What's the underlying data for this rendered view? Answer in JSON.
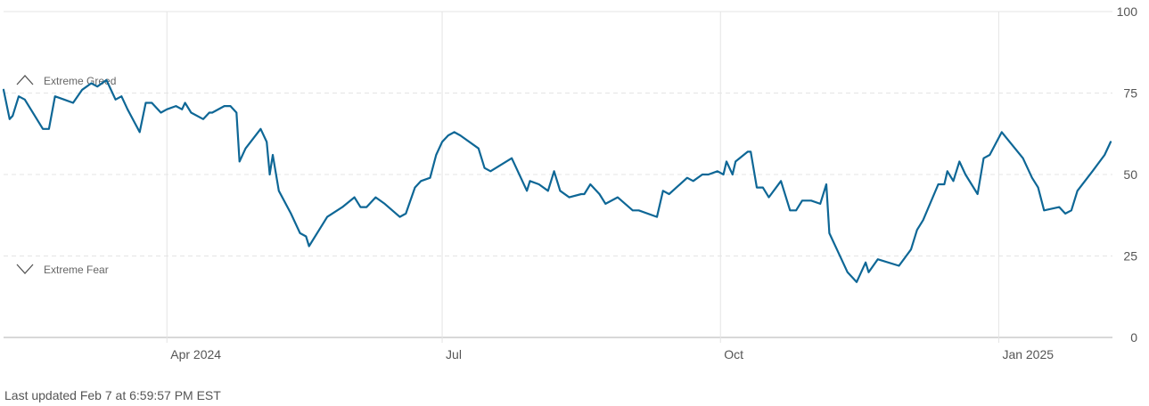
{
  "footer": {
    "updated_text": "Last updated Feb 7 at 6:59:57 PM EST"
  },
  "colors": {
    "line": "#0e6796",
    "grid": "#e4e4e4",
    "axis": "#cccccc",
    "text": "#555555"
  },
  "zones": [
    {
      "label": "Extreme Greed",
      "icon": "chevron-up-icon",
      "level": 75
    },
    {
      "label": "Extreme Fear",
      "icon": "chevron-down-icon",
      "level": 25
    }
  ],
  "chart_data": {
    "type": "line",
    "title": "",
    "xlabel": "",
    "ylabel": "",
    "ylim": [
      0,
      100
    ],
    "y_ticks": [
      0,
      25,
      50,
      75,
      100
    ],
    "y_axis_side": "right",
    "x_ticks": [
      {
        "label": "Apr 2024",
        "date": "2024-04-01"
      },
      {
        "label": "Jul",
        "date": "2024-07-01"
      },
      {
        "label": "Oct",
        "date": "2024-10-01"
      },
      {
        "label": "Jan 2025",
        "date": "2025-01-01"
      }
    ],
    "xlim": [
      "2024-02-07",
      "2025-02-07"
    ],
    "grid": "dashed horizontal at 25/50/75, vertical at month ticks",
    "series": [
      {
        "values": [
          [
            "2024-02-07",
            76
          ],
          [
            "2024-02-09",
            67
          ],
          [
            "2024-02-10",
            68
          ],
          [
            "2024-02-12",
            74
          ],
          [
            "2024-02-14",
            73
          ],
          [
            "2024-02-20",
            64
          ],
          [
            "2024-02-22",
            64
          ],
          [
            "2024-02-24",
            74
          ],
          [
            "2024-02-27",
            73
          ],
          [
            "2024-03-01",
            72
          ],
          [
            "2024-03-04",
            76
          ],
          [
            "2024-03-07",
            78
          ],
          [
            "2024-03-09",
            77
          ],
          [
            "2024-03-12",
            79
          ],
          [
            "2024-03-15",
            73
          ],
          [
            "2024-03-17",
            74
          ],
          [
            "2024-03-19",
            70
          ],
          [
            "2024-03-23",
            63
          ],
          [
            "2024-03-25",
            72
          ],
          [
            "2024-03-27",
            72
          ],
          [
            "2024-03-30",
            69
          ],
          [
            "2024-04-01",
            70
          ],
          [
            "2024-04-04",
            71
          ],
          [
            "2024-04-06",
            70
          ],
          [
            "2024-04-07",
            72
          ],
          [
            "2024-04-09",
            69
          ],
          [
            "2024-04-13",
            67
          ],
          [
            "2024-04-15",
            69
          ],
          [
            "2024-04-16",
            69
          ],
          [
            "2024-04-20",
            71
          ],
          [
            "2024-04-22",
            71
          ],
          [
            "2024-04-24",
            69
          ],
          [
            "2024-04-25",
            54
          ],
          [
            "2024-04-27",
            58
          ],
          [
            "2024-05-02",
            64
          ],
          [
            "2024-05-04",
            60
          ],
          [
            "2024-05-05",
            50
          ],
          [
            "2024-05-06",
            56
          ],
          [
            "2024-05-08",
            45
          ],
          [
            "2024-05-12",
            38
          ],
          [
            "2024-05-15",
            32
          ],
          [
            "2024-05-17",
            31
          ],
          [
            "2024-05-18",
            28
          ],
          [
            "2024-05-22",
            34
          ],
          [
            "2024-05-24",
            37
          ],
          [
            "2024-05-29",
            40
          ],
          [
            "2024-06-02",
            43
          ],
          [
            "2024-06-04",
            40
          ],
          [
            "2024-06-06",
            40
          ],
          [
            "2024-06-09",
            43
          ],
          [
            "2024-06-12",
            41
          ],
          [
            "2024-06-17",
            37
          ],
          [
            "2024-06-19",
            38
          ],
          [
            "2024-06-22",
            46
          ],
          [
            "2024-06-24",
            48
          ],
          [
            "2024-06-27",
            49
          ],
          [
            "2024-06-29",
            56
          ],
          [
            "2024-07-01",
            60
          ],
          [
            "2024-07-03",
            62
          ],
          [
            "2024-07-05",
            63
          ],
          [
            "2024-07-07",
            62
          ],
          [
            "2024-07-13",
            58
          ],
          [
            "2024-07-15",
            52
          ],
          [
            "2024-07-17",
            51
          ],
          [
            "2024-07-24",
            55
          ],
          [
            "2024-07-26",
            51
          ],
          [
            "2024-07-29",
            45
          ],
          [
            "2024-07-30",
            48
          ],
          [
            "2024-08-02",
            47
          ],
          [
            "2024-08-05",
            45
          ],
          [
            "2024-08-07",
            51
          ],
          [
            "2024-08-09",
            45
          ],
          [
            "2024-08-12",
            43
          ],
          [
            "2024-08-16",
            44
          ],
          [
            "2024-08-17",
            44
          ],
          [
            "2024-08-19",
            47
          ],
          [
            "2024-08-22",
            44
          ],
          [
            "2024-08-24",
            41
          ],
          [
            "2024-08-28",
            43
          ],
          [
            "2024-09-02",
            39
          ],
          [
            "2024-09-04",
            39
          ],
          [
            "2024-09-10",
            37
          ],
          [
            "2024-09-12",
            45
          ],
          [
            "2024-09-14",
            44
          ],
          [
            "2024-09-20",
            49
          ],
          [
            "2024-09-22",
            48
          ],
          [
            "2024-09-25",
            50
          ],
          [
            "2024-09-27",
            50
          ],
          [
            "2024-09-30",
            51
          ],
          [
            "2024-10-02",
            50
          ],
          [
            "2024-10-03",
            54
          ],
          [
            "2024-10-05",
            50
          ],
          [
            "2024-10-06",
            54
          ],
          [
            "2024-10-10",
            57
          ],
          [
            "2024-10-11",
            57
          ],
          [
            "2024-10-13",
            46
          ],
          [
            "2024-10-15",
            46
          ],
          [
            "2024-10-17",
            43
          ],
          [
            "2024-10-21",
            48
          ],
          [
            "2024-10-22",
            45
          ],
          [
            "2024-10-24",
            39
          ],
          [
            "2024-10-26",
            39
          ],
          [
            "2024-10-28",
            42
          ],
          [
            "2024-10-31",
            42
          ],
          [
            "2024-11-03",
            41
          ],
          [
            "2024-11-05",
            47
          ],
          [
            "2024-11-06",
            32
          ],
          [
            "2024-11-09",
            26
          ],
          [
            "2024-11-12",
            20
          ],
          [
            "2024-11-15",
            17
          ],
          [
            "2024-11-18",
            23
          ],
          [
            "2024-11-19",
            20
          ],
          [
            "2024-11-22",
            24
          ],
          [
            "2024-11-29",
            22
          ],
          [
            "2024-12-03",
            27
          ],
          [
            "2024-12-05",
            33
          ],
          [
            "2024-12-07",
            36
          ],
          [
            "2024-12-12",
            47
          ],
          [
            "2024-12-14",
            47
          ],
          [
            "2024-12-15",
            51
          ],
          [
            "2024-12-17",
            48
          ],
          [
            "2024-12-19",
            54
          ],
          [
            "2024-12-21",
            50
          ],
          [
            "2024-12-25",
            44
          ],
          [
            "2024-12-27",
            55
          ],
          [
            "2024-12-29",
            56
          ],
          [
            "2025-01-02",
            63
          ],
          [
            "2025-01-09",
            55
          ],
          [
            "2025-01-12",
            49
          ],
          [
            "2025-01-14",
            46
          ],
          [
            "2025-01-16",
            39
          ],
          [
            "2025-01-21",
            40
          ],
          [
            "2025-01-23",
            38
          ],
          [
            "2025-01-25",
            39
          ],
          [
            "2025-01-27",
            45
          ],
          [
            "2025-02-01",
            51
          ],
          [
            "2025-02-05",
            56
          ],
          [
            "2025-02-07",
            60
          ]
        ]
      }
    ]
  }
}
